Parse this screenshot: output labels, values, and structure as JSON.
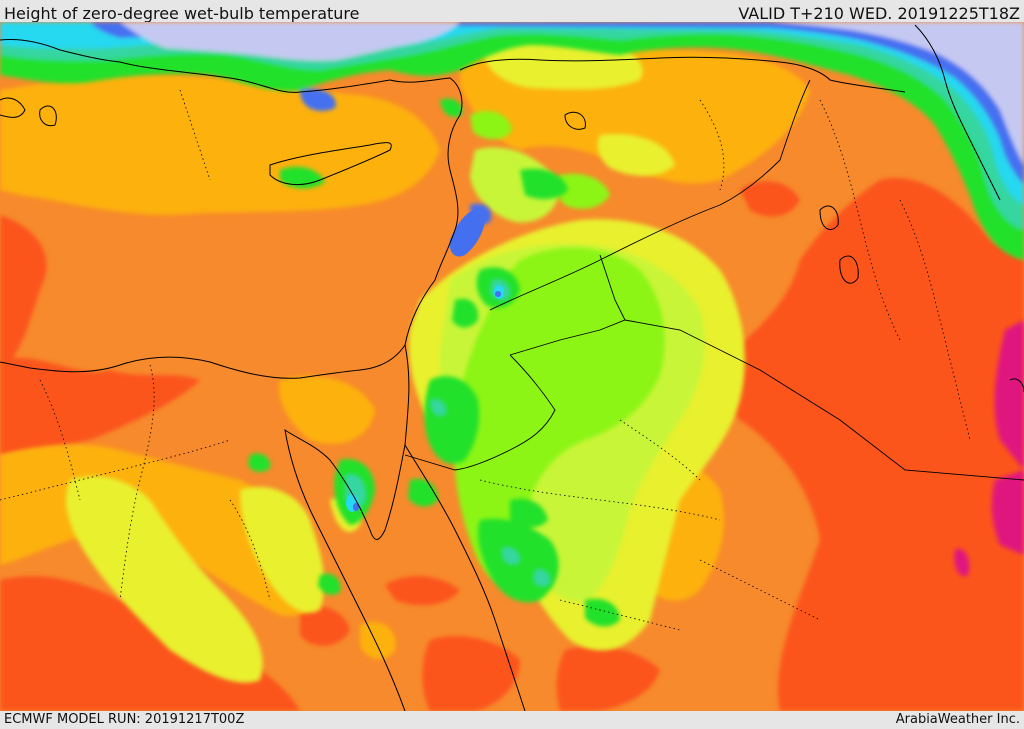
{
  "header": {
    "title": "Height of zero-degree wet-bulb temperature",
    "valid": "VALID T+210 WED. 20191225T18Z"
  },
  "footer": {
    "model_run": "ECMWF MODEL RUN: 20191217T00Z",
    "credit": "ArabiaWeather Inc."
  },
  "map": {
    "field": "height of zero-degree wet-bulb temperature",
    "palette": {
      "magenta": "#e0197f",
      "red_orange": "#fb541e",
      "orange": "#f78a2c",
      "amber": "#fdb110",
      "yellow": "#e9f02e",
      "chartreuse": "#c9f538",
      "lime": "#8cf513",
      "green": "#21e12b",
      "teal": "#34d6a0",
      "cyan": "#26d8f0",
      "blue": "#4470f0",
      "lavender": "#c5c9f2",
      "land_outline": "#000000"
    }
  }
}
